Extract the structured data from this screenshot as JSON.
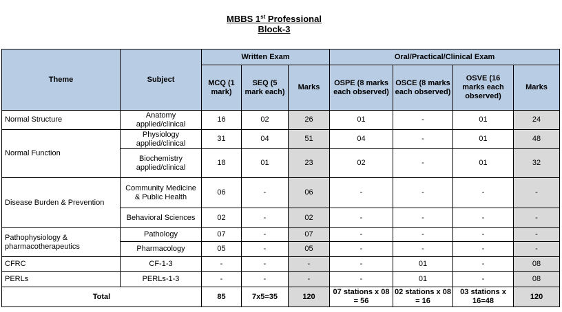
{
  "title": {
    "line1_prefix": "MBBS 1",
    "line1_sup": "st",
    "line1_suffix": " Professional",
    "line2": "Block-3"
  },
  "headers": {
    "theme": "Theme",
    "subject": "Subject",
    "written_exam": "Written Exam",
    "oral_exam": "Oral/Practical/Clinical Exam",
    "mcq": "MCQ (1 mark)",
    "seq": "SEQ (5 mark each)",
    "written_marks": "Marks",
    "ospe": "OSPE (8 marks each observed)",
    "osce": "OSCE (8 marks each observed)",
    "osve": "OSVE (16 marks each observed)",
    "oral_marks": "Marks"
  },
  "rows": [
    {
      "theme": "Normal Structure",
      "subject": "Anatomy applied/clinical",
      "mcq": "16",
      "seq": "02",
      "wmarks": "26",
      "ospe": "01",
      "osce": "-",
      "osve": "01",
      "omarks": "24"
    },
    {
      "theme": "Normal Function",
      "subject": "Physiology applied/clinical",
      "mcq": "31",
      "seq": "04",
      "wmarks": "51",
      "ospe": "04",
      "osce": "-",
      "osve": "01",
      "omarks": "48"
    },
    {
      "theme": "",
      "subject": "Biochemistry applied/clinical",
      "mcq": "18",
      "seq": "01",
      "wmarks": "23",
      "ospe": "02",
      "osce": "-",
      "osve": "01",
      "omarks": "32"
    },
    {
      "theme": "Disease Burden & Prevention",
      "subject": "Community Medicine & Public Health",
      "mcq": "06",
      "seq": "-",
      "wmarks": "06",
      "ospe": "-",
      "osce": "-",
      "osve": "-",
      "omarks": "-"
    },
    {
      "theme": "",
      "subject": "Behavioral Sciences",
      "mcq": "02",
      "seq": "-",
      "wmarks": "02",
      "ospe": "-",
      "osce": "-",
      "osve": "-",
      "omarks": "-"
    },
    {
      "theme": "Pathophysiology & pharmacotherapeutics",
      "subject": "Pathology",
      "mcq": "07",
      "seq": "-",
      "wmarks": "07",
      "ospe": "-",
      "osce": "-",
      "osve": "-",
      "omarks": "-"
    },
    {
      "theme": "",
      "subject": "Pharmacology",
      "mcq": "05",
      "seq": "-",
      "wmarks": "05",
      "ospe": "-",
      "osce": "-",
      "osve": "-",
      "omarks": "-"
    },
    {
      "theme": "CFRC",
      "subject": "CF-1-3",
      "mcq": "-",
      "seq": "-",
      "wmarks": "-",
      "ospe": "-",
      "osce": "01",
      "osve": "-",
      "omarks": "08"
    },
    {
      "theme": "PERLs",
      "subject": "PERLs-1-3",
      "mcq": "-",
      "seq": "-",
      "wmarks": "-",
      "ospe": "-",
      "osce": "01",
      "osve": "-",
      "omarks": "08"
    }
  ],
  "total": {
    "label": "Total",
    "mcq": "85",
    "seq": "7x5=35",
    "wmarks": "120",
    "ospe": "07 stations x 08 = 56",
    "osce": "02 stations x 08 = 16",
    "osve": "03 stations x 16=48",
    "omarks": "120"
  },
  "colors": {
    "header_fill": "#b8cce4",
    "marks_fill": "#d9d9d9"
  }
}
